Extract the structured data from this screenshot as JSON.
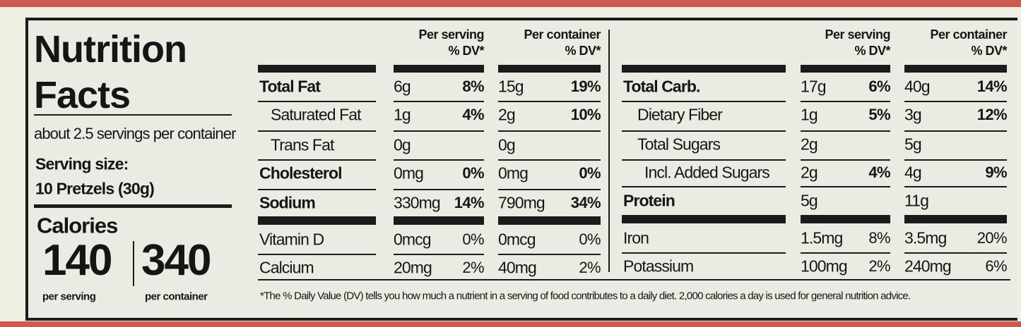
{
  "title_line1": "Nutrition",
  "title_line2": "Facts",
  "servings_per_container": "about 2.5 servings per container",
  "serving_size_label": "Serving size:",
  "serving_size": "10 Pretzels (30g)",
  "calories": {
    "label": "Calories",
    "per_serving": "140",
    "per_serving_label": "per serving",
    "per_container": "340",
    "per_container_label": "per container"
  },
  "tables": [
    {
      "serving_header": [
        "Per serving",
        "% DV*"
      ],
      "container_header": [
        "Per container",
        "% DV*"
      ],
      "rows": [
        {
          "nutrient": "Total Fat",
          "serving": "6g",
          "serving_dv": "8%",
          "container": "15g",
          "container_dv": "19%"
        },
        {
          "nutrient": "Saturated Fat",
          "serving": "1g",
          "serving_dv": "4%",
          "container": "2g",
          "container_dv": "10%"
        },
        {
          "nutrient": "Trans Fat",
          "serving": "0g",
          "container": "0g"
        },
        {
          "nutrient": "Cholesterol",
          "serving": "0mg",
          "serving_dv": "0%",
          "container": "0mg",
          "container_dv": "0%"
        },
        {
          "nutrient": "Sodium",
          "serving": "330mg",
          "serving_dv": "14%",
          "container": "790mg",
          "container_dv": "34%"
        },
        {
          "nutrient": "Vitamin D",
          "serving": "0mcg",
          "serving_dv": "0%",
          "container": "0mcg",
          "container_dv": "0%"
        },
        {
          "nutrient": "Calcium",
          "serving": "20mg",
          "serving_dv": "2%",
          "container": "40mg",
          "container_dv": "2%"
        }
      ]
    },
    {
      "serving_header": [
        "Per serving",
        "% DV*"
      ],
      "container_header": [
        "Per container",
        "% DV*"
      ],
      "rows": [
        {
          "nutrient": "Total Carb.",
          "serving": "17g",
          "serving_dv": "6%",
          "container": "40g",
          "container_dv": "14%"
        },
        {
          "nutrient": "Dietary Fiber",
          "serving": "1g",
          "serving_dv": "5%",
          "container": "3g",
          "container_dv": "12%"
        },
        {
          "nutrient": "Total Sugars",
          "serving": "2g",
          "container": "5g"
        },
        {
          "nutrient": "Incl. Added Sugars",
          "serving": "2g",
          "serving_dv": "4%",
          "container": "4g",
          "container_dv": "9%"
        },
        {
          "nutrient": "Protein",
          "serving": "5g",
          "container": "11g"
        },
        {
          "nutrient": "Iron",
          "serving": "1.5mg",
          "serving_dv": "8%",
          "container": "3.5mg",
          "container_dv": "20%"
        },
        {
          "nutrient": "Potassium",
          "serving": "100mg",
          "serving_dv": "2%",
          "container": "240mg",
          "container_dv": "6%"
        }
      ]
    }
  ],
  "footnote": "*The % Daily Value (DV) tells you how much a nutrient in a serving of food contributes to a daily diet. 2,000 calories a day is used for general nutrition advice."
}
